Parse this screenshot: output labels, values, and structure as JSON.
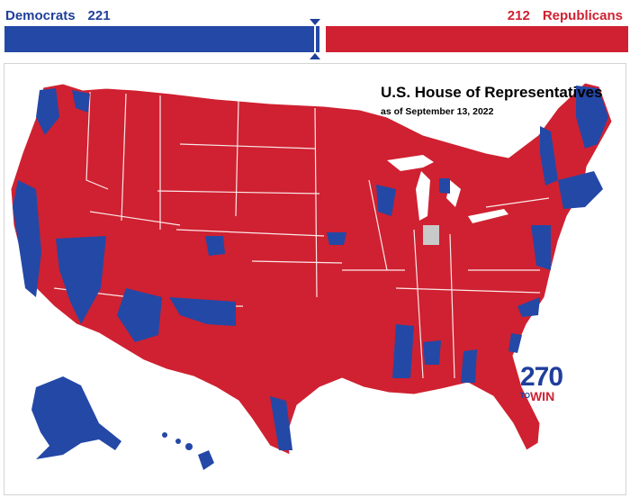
{
  "header": {
    "dem_label": "Democrats",
    "dem_seats": 221,
    "rep_label": "Republicans",
    "rep_seats": 212
  },
  "colors": {
    "democrat": "#2448a6",
    "republican": "#cf2131",
    "undecided": "#c9c9c9"
  },
  "map": {
    "title": "U.S. House of Representatives",
    "subtitle": "as of September 13, 2022"
  },
  "logo": {
    "number": "270",
    "to": "TO",
    "win": "WIN"
  }
}
